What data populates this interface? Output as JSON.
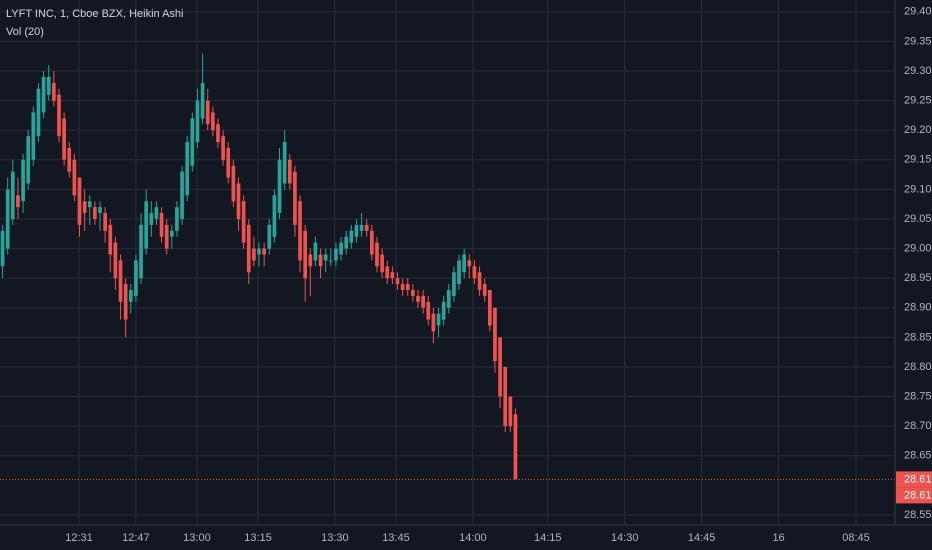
{
  "chart_data": {
    "type": "candlestick",
    "title": "LYFT INC, 1, Cboe BZX, Heikin Ashi",
    "subtitle": "Vol (20)",
    "up_color": "#26a69a",
    "down_color": "#ef5350",
    "grid": true,
    "open": [
      28.97,
      29.0,
      29.05,
      29.09,
      29.08,
      29.11,
      29.15,
      29.19,
      29.23,
      29.26,
      29.28,
      29.26,
      29.22,
      29.17,
      29.15,
      29.12,
      29.08,
      29.07,
      29.07,
      29.06,
      29.06,
      29.04,
      29.01,
      28.98,
      28.94,
      28.91,
      28.92,
      28.95,
      29.0,
      29.04,
      29.05,
      29.06,
      29.04,
      29.02,
      29.03,
      29.05,
      29.09,
      29.14,
      29.18,
      29.22,
      29.25,
      29.23,
      29.21,
      29.19,
      29.17,
      29.14,
      29.11,
      29.08,
      29.04,
      29.0,
      28.99,
      29.0,
      29.0,
      29.02,
      29.06,
      29.11,
      29.15,
      29.13,
      29.08,
      29.03,
      28.99,
      28.98,
      28.99,
      28.98,
      28.98,
      28.98,
      28.99,
      29.0,
      29.01,
      29.02,
      29.03,
      29.04,
      29.03,
      29.01,
      28.99,
      28.97,
      28.96,
      28.95,
      28.94,
      28.94,
      28.93,
      28.92,
      28.92,
      28.91,
      28.89,
      28.87,
      28.88,
      28.9,
      28.92,
      28.94,
      28.96,
      28.98,
      28.97,
      28.96,
      28.94,
      28.93,
      28.9,
      28.85,
      28.8,
      28.75,
      28.72
    ],
    "high": [
      29.04,
      29.12,
      29.15,
      29.12,
      29.16,
      29.2,
      29.24,
      29.28,
      29.3,
      29.31,
      29.3,
      29.27,
      29.23,
      29.18,
      29.16,
      29.12,
      29.1,
      29.09,
      29.08,
      29.08,
      29.07,
      29.05,
      29.02,
      28.99,
      28.95,
      28.94,
      28.99,
      29.06,
      29.1,
      29.08,
      29.08,
      29.07,
      29.05,
      29.04,
      29.08,
      29.14,
      29.19,
      29.23,
      29.27,
      29.33,
      29.27,
      29.24,
      29.22,
      29.2,
      29.18,
      29.15,
      29.12,
      29.09,
      29.05,
      29.02,
      29.01,
      29.01,
      29.05,
      29.1,
      29.17,
      29.2,
      29.16,
      29.14,
      29.09,
      29.04,
      29.0,
      29.02,
      29.0,
      29.0,
      29.0,
      29.01,
      29.02,
      29.03,
      29.04,
      29.05,
      29.06,
      29.05,
      29.04,
      29.02,
      29.0,
      28.98,
      28.97,
      28.96,
      28.95,
      28.95,
      28.94,
      28.93,
      28.93,
      28.92,
      28.9,
      28.9,
      28.92,
      28.94,
      28.97,
      28.99,
      29.0,
      28.99,
      28.98,
      28.97,
      28.95,
      28.93,
      28.9,
      28.85,
      28.8,
      28.75,
      28.73
    ],
    "low": [
      28.95,
      28.99,
      29.04,
      29.05,
      29.06,
      29.1,
      29.14,
      29.18,
      29.22,
      29.25,
      29.24,
      29.18,
      29.14,
      29.12,
      29.08,
      29.02,
      29.03,
      29.04,
      29.04,
      29.03,
      29.01,
      28.96,
      28.93,
      28.88,
      28.85,
      28.89,
      28.91,
      28.94,
      28.99,
      29.02,
      29.04,
      29.01,
      28.99,
      29.0,
      29.02,
      29.04,
      29.08,
      29.13,
      29.17,
      29.21,
      29.2,
      29.19,
      29.17,
      29.14,
      29.11,
      29.07,
      29.03,
      29.0,
      28.94,
      28.97,
      28.97,
      28.97,
      28.99,
      29.01,
      29.05,
      29.1,
      29.1,
      29.02,
      28.96,
      28.91,
      28.92,
      28.97,
      28.95,
      28.96,
      28.97,
      28.97,
      28.98,
      28.99,
      29.0,
      29.01,
      29.02,
      29.02,
      28.98,
      28.96,
      28.95,
      28.94,
      28.94,
      28.93,
      28.92,
      28.92,
      28.91,
      28.9,
      28.89,
      28.87,
      28.84,
      28.85,
      28.87,
      28.89,
      28.91,
      28.93,
      28.95,
      28.95,
      28.94,
      28.92,
      28.91,
      28.86,
      28.79,
      28.73,
      28.69,
      28.69,
      28.61
    ],
    "close": [
      29.03,
      29.1,
      29.13,
      29.07,
      29.15,
      29.19,
      29.23,
      29.27,
      29.29,
      29.29,
      29.25,
      29.19,
      29.15,
      29.13,
      29.09,
      29.04,
      29.06,
      29.08,
      29.05,
      29.07,
      29.03,
      28.99,
      28.95,
      28.91,
      28.88,
      28.93,
      28.98,
      29.04,
      29.08,
      29.06,
      29.07,
      29.02,
      29.0,
      29.03,
      29.07,
      29.13,
      29.18,
      29.22,
      29.25,
      29.28,
      29.21,
      29.2,
      29.18,
      29.15,
      29.12,
      29.08,
      29.05,
      29.01,
      28.96,
      28.98,
      29.0,
      28.99,
      29.04,
      29.09,
      29.15,
      29.18,
      29.11,
      29.04,
      28.98,
      28.95,
      28.97,
      29.01,
      28.97,
      28.99,
      28.98,
      29.0,
      29.01,
      29.02,
      29.03,
      29.04,
      29.04,
      29.03,
      28.99,
      28.97,
      28.96,
      28.95,
      28.95,
      28.94,
      28.93,
      28.93,
      28.92,
      28.91,
      28.9,
      28.88,
      28.86,
      28.89,
      28.91,
      28.93,
      28.96,
      28.98,
      28.99,
      28.97,
      28.95,
      28.93,
      28.92,
      28.87,
      28.81,
      28.75,
      28.7,
      28.7,
      28.61
    ],
    "ylim": [
      28.538,
      29.42
    ],
    "yticks": [
      {
        "value": 29.4,
        "label": "29.40"
      },
      29.35,
      {
        "value": 29.3,
        "label": "29.30"
      },
      29.25,
      {
        "value": 29.2,
        "label": "29.20"
      },
      29.15,
      {
        "value": 29.1,
        "label": "29.10"
      },
      29.05,
      {
        "value": 29.0,
        "label": "29.00"
      },
      28.95,
      {
        "value": 28.9,
        "label": "28.90"
      },
      28.85,
      {
        "value": 28.8,
        "label": "28.80"
      },
      28.75,
      {
        "value": 28.7,
        "label": "28.70"
      },
      28.65,
      28.55
    ],
    "xlim": [
      0,
      174.5
    ],
    "xticks": [
      {
        "value": 15.4,
        "label": "12:31"
      },
      {
        "value": 26.5,
        "label": "12:47"
      },
      {
        "value": 38.4,
        "label": "13:00"
      },
      {
        "value": 50.3,
        "label": "13:15"
      },
      {
        "value": 65.3,
        "label": "13:30"
      },
      {
        "value": 77.2,
        "label": "13:45"
      },
      {
        "value": 92.2,
        "label": "14:00"
      },
      {
        "value": 106.8,
        "label": "14:15"
      },
      {
        "value": 121.8,
        "label": "14:30"
      },
      {
        "value": 136.8,
        "label": "14:45"
      },
      {
        "value": 151.8,
        "label": "16"
      },
      {
        "value": 166.9,
        "label": "08:45"
      }
    ],
    "price_labels": [
      28.61,
      28.61
    ]
  }
}
